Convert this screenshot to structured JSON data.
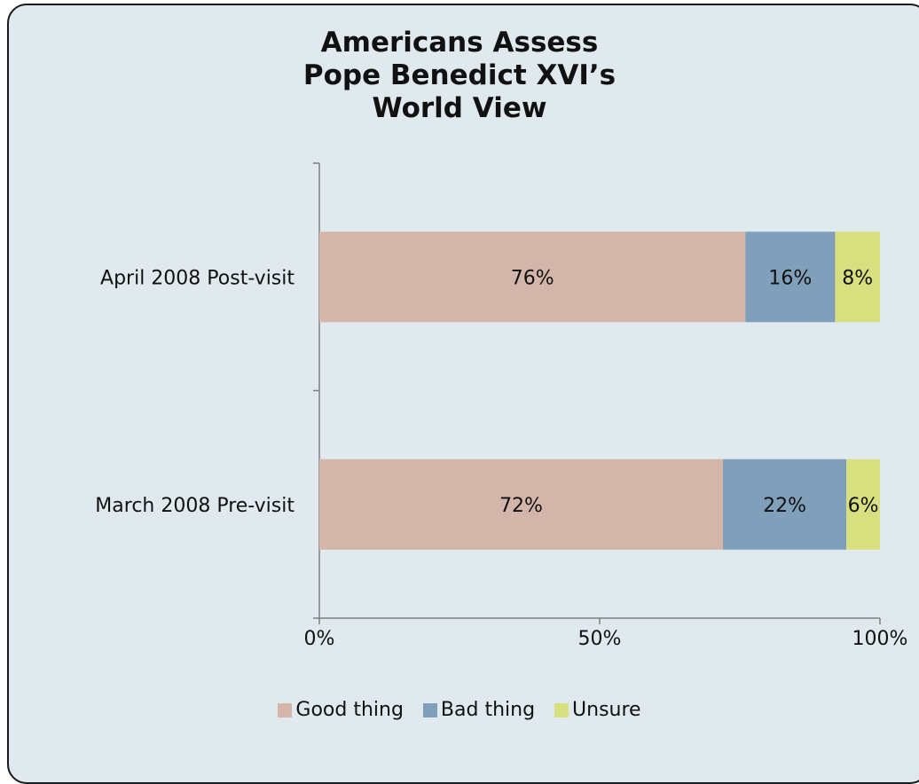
{
  "chart_data": {
    "type": "bar",
    "orientation": "horizontal",
    "stacked": true,
    "title_lines": [
      "Americans Assess",
      "Pope Benedict XVI’s",
      "World View"
    ],
    "categories": [
      "April 2008 Post-visit",
      "March 2008 Pre-visit"
    ],
    "series": [
      {
        "name": "Good thing",
        "values": [
          76,
          72
        ],
        "labels": [
          "76%",
          "72%"
        ],
        "color": "#d4b5aa"
      },
      {
        "name": "Bad thing",
        "values": [
          16,
          22
        ],
        "labels": [
          "16%",
          "22%"
        ],
        "color": "#7f9fbb"
      },
      {
        "name": "Unsure",
        "values": [
          8,
          6
        ],
        "labels": [
          "8%",
          "6%"
        ],
        "color": "#d8df7e"
      }
    ],
    "x_ticks": [
      0,
      50,
      100
    ],
    "x_tick_labels": [
      "0%",
      "50%",
      "100%"
    ],
    "xlim": [
      0,
      100
    ],
    "grid": false,
    "legend_position": "bottom",
    "background_color": "#dfe9ee"
  }
}
